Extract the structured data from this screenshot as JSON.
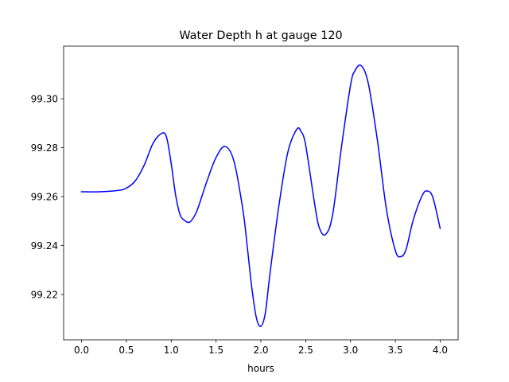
{
  "chart_data": {
    "type": "line",
    "title": "Water Depth h at gauge 120",
    "xlabel": "hours",
    "ylabel": "",
    "xlim": [
      -0.2,
      4.2
    ],
    "ylim": [
      99.2015,
      99.3215
    ],
    "xticks": [
      0.0,
      0.5,
      1.0,
      1.5,
      2.0,
      2.5,
      3.0,
      3.5,
      4.0
    ],
    "xtick_labels": [
      "0.0",
      "0.5",
      "1.0",
      "1.5",
      "2.0",
      "2.5",
      "3.0",
      "3.5",
      "4.0"
    ],
    "yticks": [
      99.22,
      99.24,
      99.26,
      99.28,
      99.3
    ],
    "ytick_labels": [
      "99.22",
      "99.24",
      "99.26",
      "99.28",
      "99.30"
    ],
    "grid": false,
    "legend": "none",
    "series": [
      {
        "color": "#0000ff",
        "x": [
          0.0,
          0.2,
          0.4,
          0.5,
          0.6,
          0.7,
          0.8,
          0.9,
          0.95,
          1.0,
          1.05,
          1.1,
          1.15,
          1.2,
          1.25,
          1.3,
          1.4,
          1.5,
          1.6,
          1.7,
          1.8,
          1.85,
          1.9,
          1.95,
          2.0,
          2.05,
          2.1,
          2.2,
          2.3,
          2.4,
          2.45,
          2.5,
          2.6,
          2.65,
          2.72,
          2.8,
          2.9,
          3.0,
          3.05,
          3.12,
          3.2,
          3.3,
          3.4,
          3.5,
          3.56,
          3.62,
          3.7,
          3.8,
          3.86,
          3.92,
          4.0
        ],
        "y": [
          99.262,
          99.262,
          99.2625,
          99.2635,
          99.2665,
          99.273,
          99.282,
          99.286,
          99.284,
          99.2735,
          99.2605,
          99.2525,
          99.2503,
          99.2495,
          99.2515,
          99.2555,
          99.2665,
          99.276,
          99.2805,
          99.2745,
          99.2545,
          99.239,
          99.2225,
          99.2105,
          99.207,
          99.2125,
          99.228,
          99.256,
          99.278,
          99.2875,
          99.2865,
          99.281,
          99.257,
          99.2475,
          99.2445,
          99.2525,
          99.2805,
          99.3055,
          99.3115,
          99.3135,
          99.306,
          99.283,
          99.255,
          99.238,
          99.2355,
          99.2385,
          99.2505,
          99.2605,
          99.2623,
          99.2595,
          99.247
        ]
      }
    ]
  }
}
